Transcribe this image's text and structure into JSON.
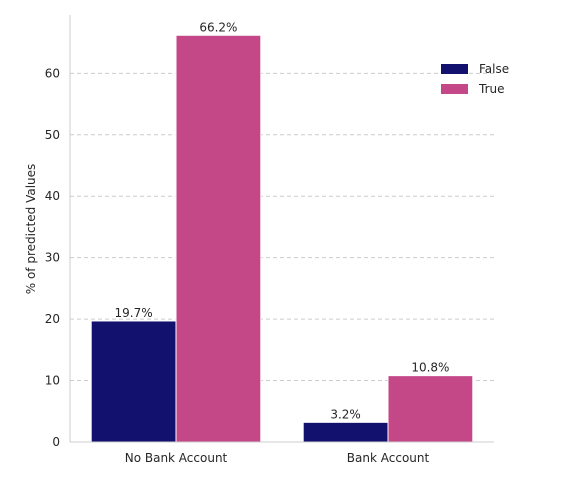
{
  "chart_data": {
    "type": "bar",
    "categories": [
      "No Bank Account",
      "Bank Account"
    ],
    "series": [
      {
        "name": "False",
        "values": [
          19.7,
          3.2
        ],
        "labels": [
          "19.7%",
          "3.2%"
        ],
        "color": "#12126e"
      },
      {
        "name": "True",
        "values": [
          66.2,
          10.8
        ],
        "labels": [
          "66.2%",
          "10.8%"
        ],
        "color": "#c44787"
      }
    ],
    "title": "",
    "xlabel": "",
    "ylabel": "% of predicted Values",
    "ylim": [
      0,
      69.5
    ],
    "yticks": [
      0,
      10,
      20,
      30,
      40,
      50,
      60
    ],
    "grid": {
      "y": true,
      "style": "dashed"
    },
    "legend_position": "top-right"
  }
}
